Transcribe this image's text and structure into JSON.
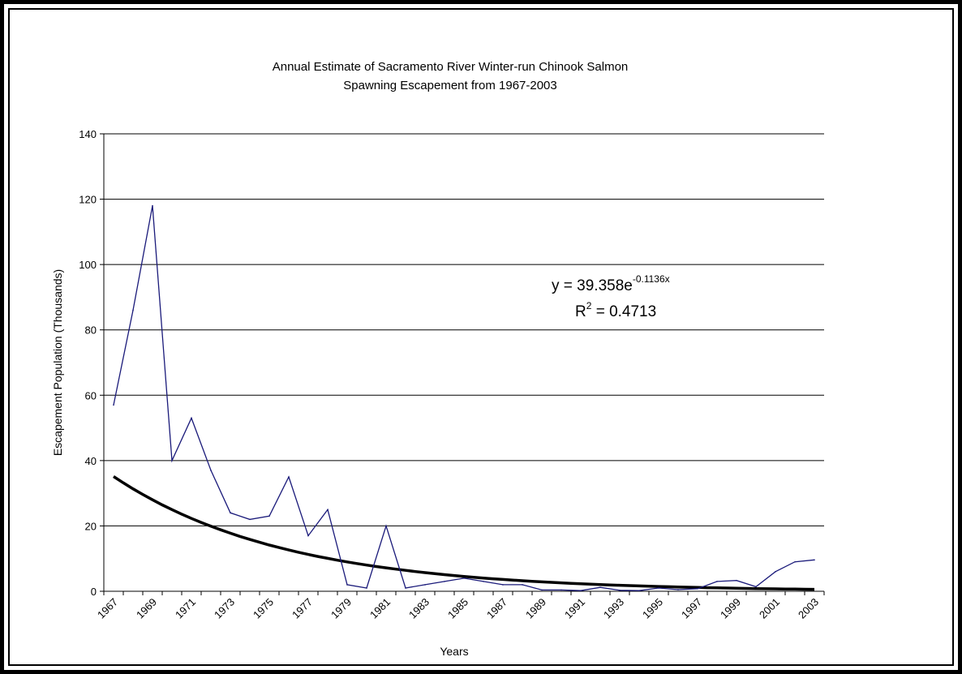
{
  "chart_data": {
    "type": "line",
    "title_line1": "Annual Estimate of Sacramento River Winter-run Chinook Salmon",
    "title_line2": "Spawning Escapement from 1967-2003",
    "xlabel": "Years",
    "ylabel": "Escapement Population (Thousands)",
    "ylim": [
      0,
      140
    ],
    "yticks": [
      0,
      20,
      40,
      60,
      80,
      100,
      120,
      140
    ],
    "grid": "horizontal",
    "x": [
      1967,
      1968,
      1969,
      1970,
      1971,
      1972,
      1973,
      1974,
      1975,
      1976,
      1977,
      1978,
      1979,
      1980,
      1981,
      1982,
      1983,
      1984,
      1985,
      1986,
      1987,
      1988,
      1989,
      1990,
      1991,
      1992,
      1993,
      1994,
      1995,
      1996,
      1997,
      1998,
      1999,
      2000,
      2001,
      2002,
      2003
    ],
    "xtick_labels": [
      "1967",
      "1969",
      "1971",
      "1973",
      "1975",
      "1977",
      "1979",
      "1981",
      "1983",
      "1985",
      "1987",
      "1989",
      "1991",
      "1993",
      "1995",
      "1997",
      "1999",
      "2001",
      "2003"
    ],
    "series": [
      {
        "color": "#1a1a7a",
        "values": [
          57,
          86,
          118,
          40,
          53,
          37,
          24,
          22,
          23,
          35,
          17,
          25,
          2,
          1,
          20,
          1,
          2,
          3,
          4,
          3,
          2,
          2,
          0.4,
          0.4,
          0.2,
          1.2,
          0.3,
          0.2,
          1,
          0.5,
          0.8,
          3,
          3.3,
          1.4,
          6,
          9,
          9.6
        ]
      }
    ],
    "trendline": {
      "color": "#000000",
      "a": 39.358,
      "b": -0.1136,
      "equation_prefix": "y = 39.358e",
      "equation_exponent": "-0.1136x",
      "r2_prefix": "R",
      "r2_sup": "2",
      "r2_value": " = 0.4713"
    }
  }
}
